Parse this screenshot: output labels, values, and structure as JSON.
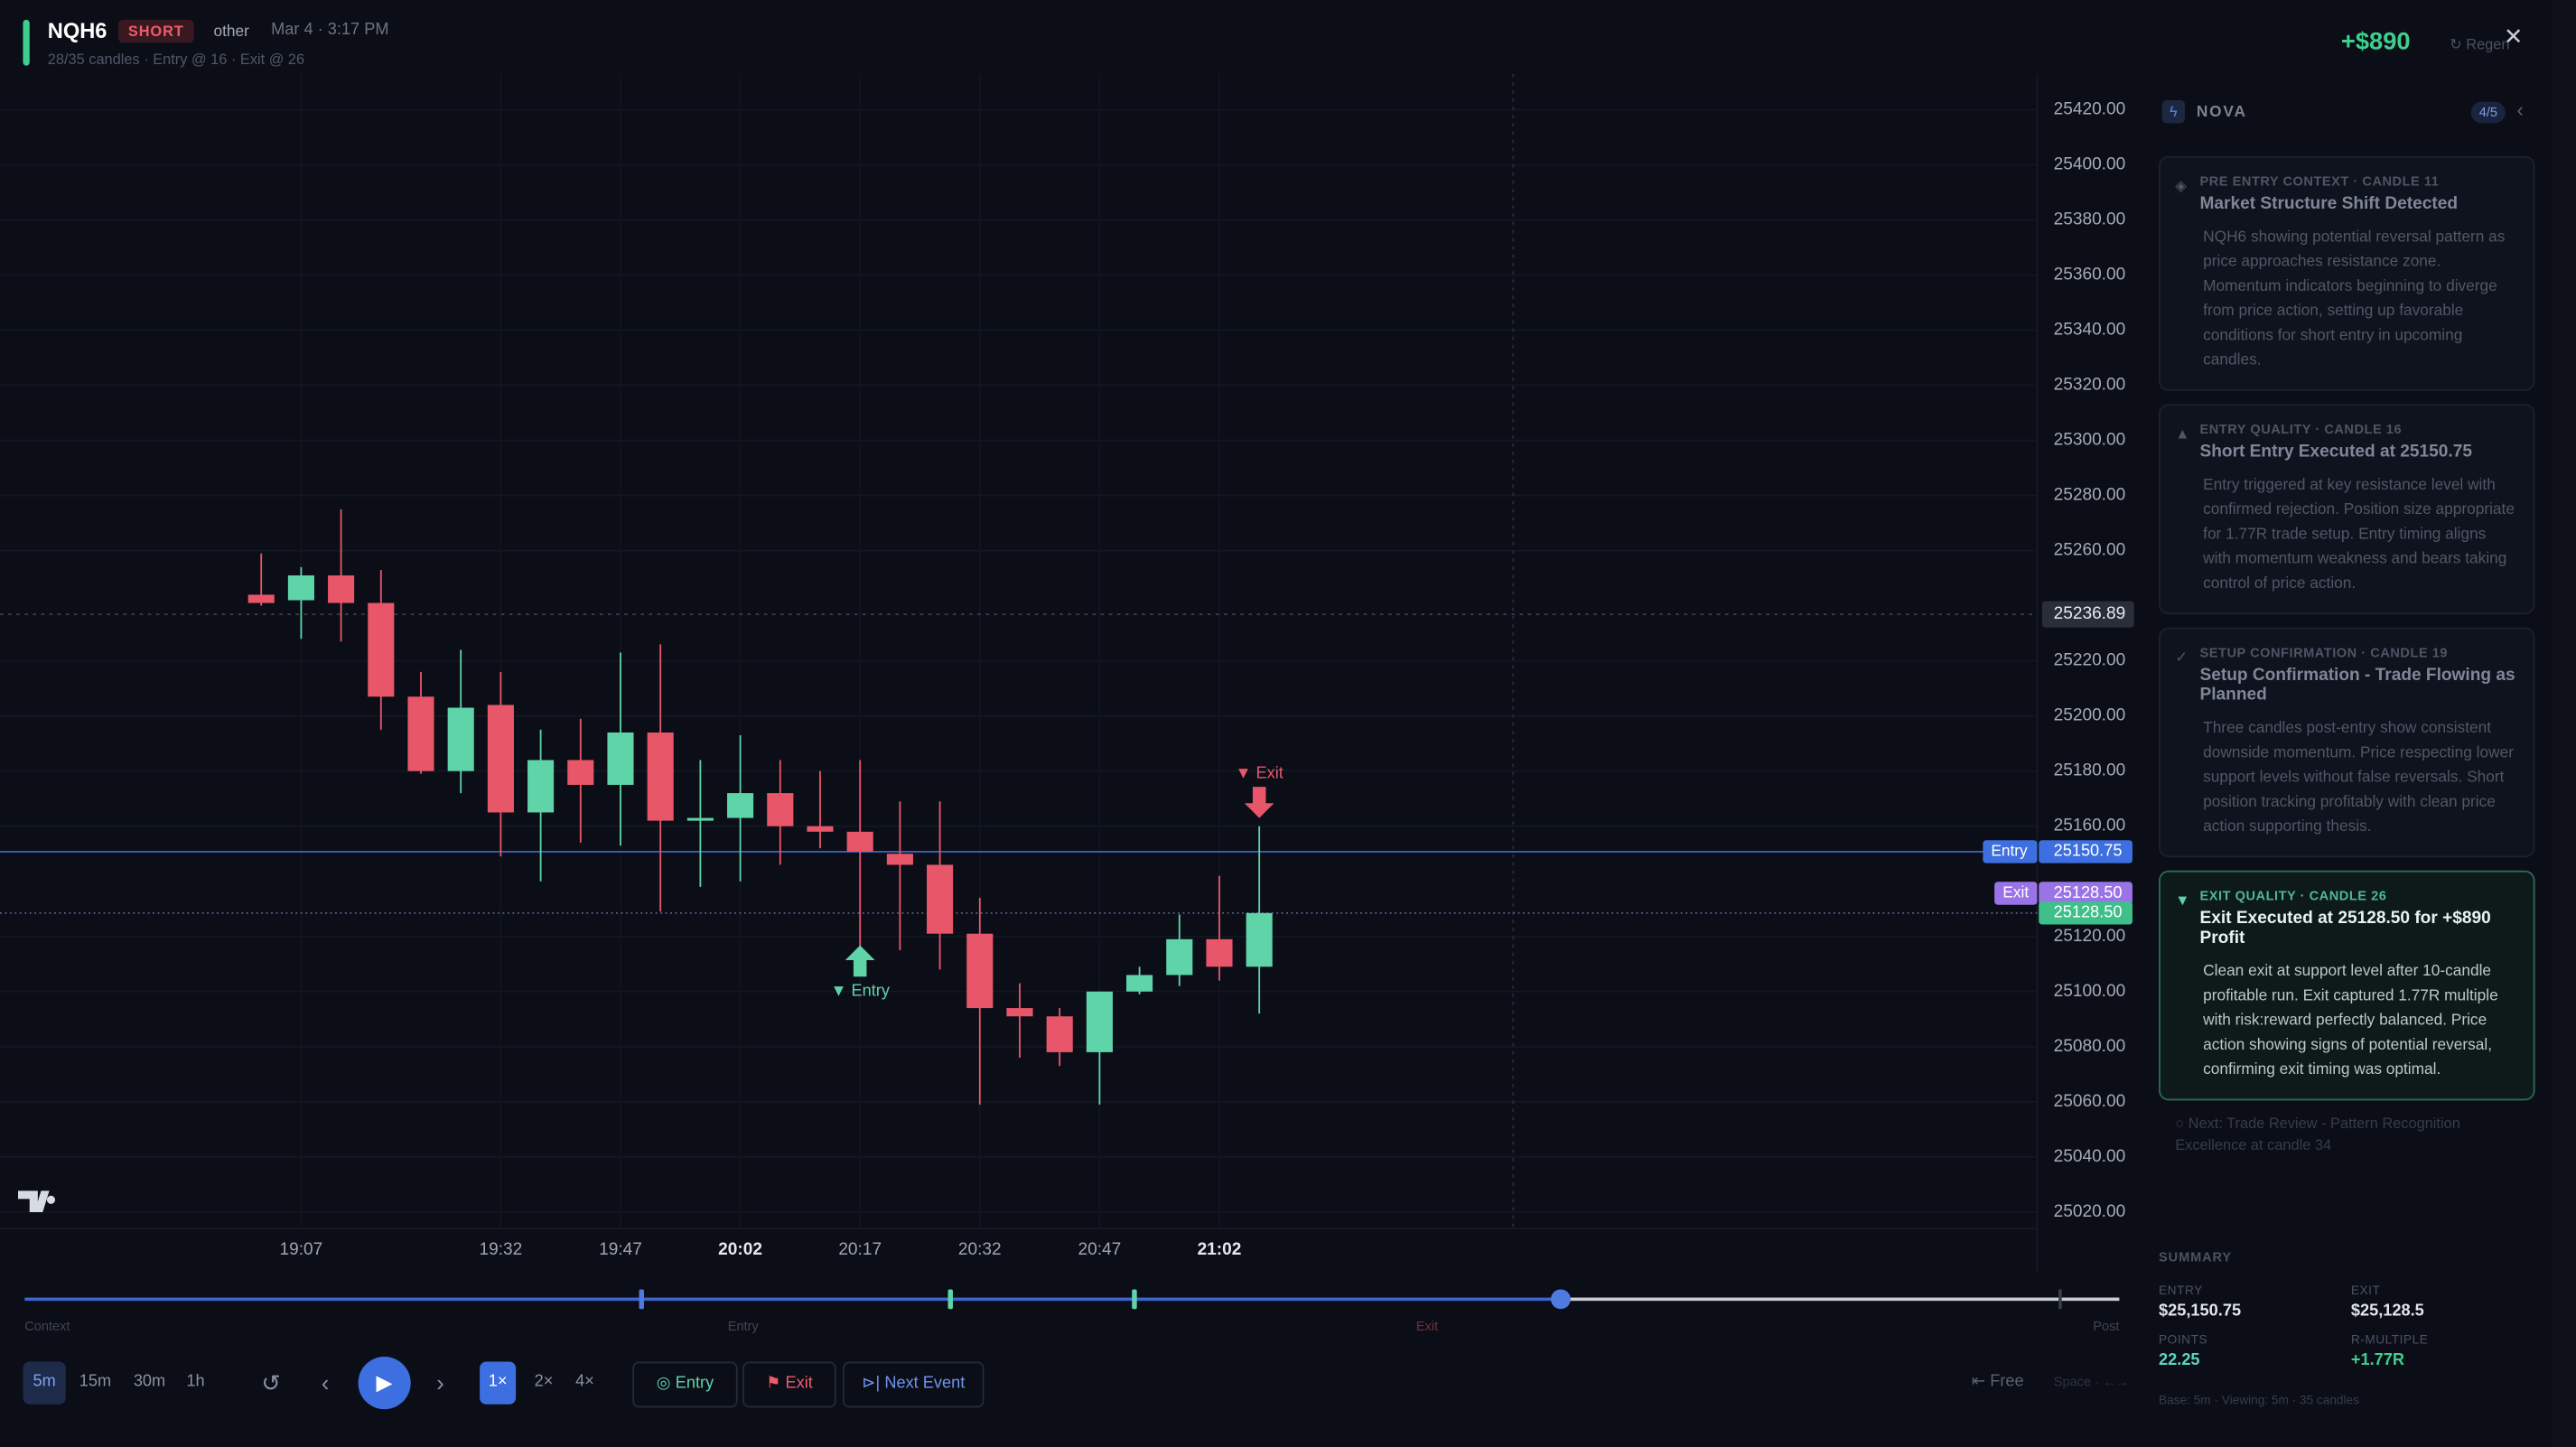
{
  "header": {
    "symbol": "NQH6",
    "side": "SHORT",
    "tag": "other",
    "date": "Mar 4 · 3:17 PM",
    "meta": "28/35 candles · Entry @ 16 · Exit @ 26",
    "pnl": "+$890",
    "regen": "Regen"
  },
  "chart_data": {
    "type": "candlestick",
    "categories": [
      null,
      "19:07",
      null,
      null,
      null,
      null,
      "19:32",
      null,
      null,
      "19:47",
      null,
      null,
      "20:02",
      null,
      null,
      "20:17",
      null,
      null,
      "20:32",
      null,
      null,
      "20:47",
      null,
      null,
      "21:02",
      null
    ],
    "open": [
      25244,
      25242,
      25251,
      25241,
      25207,
      25180,
      25204,
      25165,
      25184,
      25175,
      25194,
      25162,
      25163,
      25172,
      25160,
      25158,
      25150,
      25146,
      25121,
      25094,
      25091,
      25078,
      25100,
      25106,
      25119,
      25109
    ],
    "high": [
      25259,
      25254,
      25275,
      25253,
      25216,
      25224,
      25216,
      25195,
      25199,
      25223,
      25226,
      25184,
      25193,
      25184,
      25180,
      25184,
      25169,
      25169,
      25134,
      25103,
      25094,
      25100,
      25109,
      25128,
      25142,
      25160
    ],
    "low": [
      25240,
      25228,
      25227,
      25195,
      25179,
      25172,
      25149,
      25140,
      25154,
      25153,
      25129,
      25138,
      25140,
      25146,
      25152,
      25109,
      25115,
      25108,
      25059,
      25076,
      25073,
      25059,
      25099,
      25102,
      25104,
      25092
    ],
    "close": [
      25241,
      25251,
      25241,
      25207,
      25180,
      25203,
      25165,
      25184,
      25175,
      25194,
      25162,
      25163,
      25172,
      25160,
      25158,
      25150.75,
      25146,
      25121,
      25094,
      25091,
      25078,
      25100,
      25106,
      25119,
      25109,
      25128.5
    ],
    "up_color": "#5fd4a8",
    "down_color": "#e8566a",
    "ylim": [
      25014,
      25430
    ],
    "yticks": [
      {
        "value": 25020,
        "label": "25020.00"
      },
      {
        "value": 25040,
        "label": "25040.00"
      },
      {
        "value": 25060,
        "label": "25060.00"
      },
      {
        "value": 25080,
        "label": "25080.00"
      },
      {
        "value": 25100,
        "label": "25100.00"
      },
      {
        "value": 25120,
        "label": "25120.00"
      },
      {
        "value": 25160,
        "label": "25160.00"
      },
      {
        "value": 25180,
        "label": "25180.00"
      },
      {
        "value": 25200,
        "label": "25200.00"
      },
      {
        "value": 25220,
        "label": "25220.00"
      },
      {
        "value": 25260,
        "label": "25260.00"
      },
      {
        "value": 25280,
        "label": "25280.00"
      },
      {
        "value": 25300,
        "label": "25300.00"
      },
      {
        "value": 25320,
        "label": "25320.00"
      },
      {
        "value": 25340,
        "label": "25340.00"
      },
      {
        "value": 25360,
        "label": "25360.00"
      },
      {
        "value": 25380,
        "label": "25380.00"
      },
      {
        "value": 25400,
        "label": "25400.00"
      },
      {
        "value": 25420,
        "label": "25420.00"
      }
    ],
    "grid": true,
    "crosshair_price": 25236.89,
    "entry_price": 25150.75,
    "exit_price": {
      "value": 25128.5,
      "label": "25128.50"
    },
    "last_price": {
      "value": 25128.5,
      "label": "25128.50"
    },
    "entry_tag": "Entry",
    "exit_tag": "Exit",
    "entry_marker": "▼ Entry",
    "exit_marker": "▼ Exit"
  },
  "timeline": {
    "labels": [
      "Context",
      "Entry",
      "Exit",
      "Post"
    ]
  },
  "controls": {
    "timeframes": [
      "5m",
      "15m",
      "30m",
      "1h"
    ],
    "speeds": [
      "1×",
      "2×",
      "4×"
    ],
    "entry": "Entry",
    "exit": "Exit",
    "next_event": "Next Event",
    "free": "Free",
    "hint": "Space · ←→"
  },
  "sidebar": {
    "title": "NOVA",
    "count": "4/5",
    "cards": [
      {
        "label": "PRE ENTRY CONTEXT · CANDLE 11",
        "title": "Market Structure Shift Detected",
        "body": "NQH6 showing potential reversal pattern as price approaches resistance zone. Momentum indicators beginning to diverge from price action, setting up favorable conditions for short entry in upcoming candles."
      },
      {
        "label": "ENTRY QUALITY · CANDLE 16",
        "title": "Short Entry Executed at 25150.75",
        "body": "Entry triggered at key resistance level with confirmed rejection. Position size appropriate for 1.77R trade setup. Entry timing aligns with momentum weakness and bears taking control of price action."
      },
      {
        "label": "SETUP CONFIRMATION · CANDLE 19",
        "title": "Setup Confirmation - Trade Flowing as Planned",
        "body": "Three candles post-entry show consistent downside momentum. Price respecting lower support levels without false reversals. Short position tracking profitably with clean price action supporting thesis."
      },
      {
        "label": "EXIT QUALITY · CANDLE 26",
        "title": "Exit Executed at 25128.50 for +$890 Profit",
        "body": "Clean exit at support level after 10-candle profitable run. Exit captured 1.77R multiple with risk:reward perfectly balanced. Price action showing signs of potential reversal, confirming exit timing was optimal."
      }
    ],
    "next": "○ Next: Trade Review - Pattern Recognition Excellence at candle 34",
    "summary": {
      "title": "SUMMARY",
      "items": [
        {
          "label": "ENTRY",
          "value": "$25,150.75"
        },
        {
          "label": "EXIT",
          "value": "$25,128.5"
        },
        {
          "label": "POINTS",
          "value": "22.25"
        },
        {
          "label": "R-MULTIPLE",
          "value": "+1.77R"
        }
      ],
      "footer": "Base: 5m · Viewing: 5m · 35 candles"
    }
  }
}
